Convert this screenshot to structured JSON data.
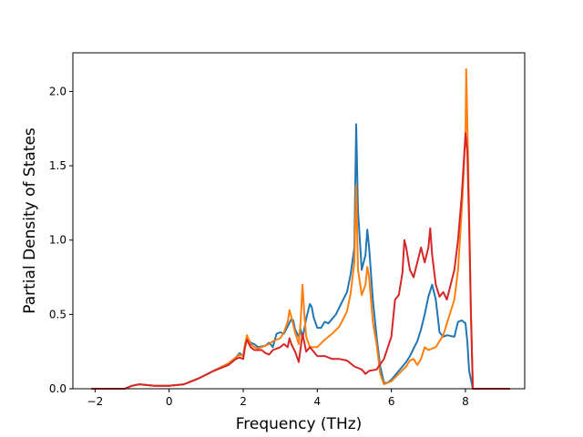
{
  "chart_data": {
    "type": "line",
    "title": "",
    "xlabel": "Frequency (THz)",
    "ylabel": "Partial Density of States",
    "xlim": [
      -2.6,
      9.6
    ],
    "ylim": [
      0.0,
      2.26
    ],
    "xticks": [
      -2,
      0,
      2,
      4,
      6,
      8
    ],
    "yticks": [
      0.0,
      0.5,
      1.0,
      1.5,
      2.0
    ],
    "xtick_labels": [
      "−2",
      "0",
      "2",
      "4",
      "6",
      "8"
    ],
    "ytick_labels": [
      "0.0",
      "0.5",
      "1.0",
      "1.5",
      "2.0"
    ],
    "grid": false,
    "legend": "none",
    "series": [
      {
        "color": "#1f77b4",
        "points": [
          [
            -2.1,
            0
          ],
          [
            -1.2,
            0.0
          ],
          [
            -1.0,
            0.02
          ],
          [
            -0.8,
            0.03
          ],
          [
            -0.4,
            0.02
          ],
          [
            0,
            0.02
          ],
          [
            0.4,
            0.03
          ],
          [
            0.8,
            0.07
          ],
          [
            1.2,
            0.12
          ],
          [
            1.6,
            0.17
          ],
          [
            1.8,
            0.21
          ],
          [
            1.9,
            0.24
          ],
          [
            2.0,
            0.22
          ],
          [
            2.05,
            0.3
          ],
          [
            2.1,
            0.35
          ],
          [
            2.2,
            0.31
          ],
          [
            2.3,
            0.3
          ],
          [
            2.4,
            0.28
          ],
          [
            2.6,
            0.29
          ],
          [
            2.7,
            0.31
          ],
          [
            2.8,
            0.28
          ],
          [
            2.9,
            0.37
          ],
          [
            3.0,
            0.38
          ],
          [
            3.1,
            0.37
          ],
          [
            3.2,
            0.42
          ],
          [
            3.3,
            0.47
          ],
          [
            3.35,
            0.46
          ],
          [
            3.4,
            0.4
          ],
          [
            3.5,
            0.35
          ],
          [
            3.55,
            0.4
          ],
          [
            3.6,
            0.34
          ],
          [
            3.7,
            0.47
          ],
          [
            3.8,
            0.57
          ],
          [
            3.85,
            0.55
          ],
          [
            3.9,
            0.48
          ],
          [
            4.0,
            0.41
          ],
          [
            4.1,
            0.41
          ],
          [
            4.2,
            0.45
          ],
          [
            4.3,
            0.44
          ],
          [
            4.5,
            0.5
          ],
          [
            4.7,
            0.6
          ],
          [
            4.8,
            0.65
          ],
          [
            4.9,
            0.77
          ],
          [
            5.0,
            0.95
          ],
          [
            5.05,
            1.78
          ],
          [
            5.1,
            1.2
          ],
          [
            5.2,
            0.8
          ],
          [
            5.3,
            0.9
          ],
          [
            5.35,
            1.07
          ],
          [
            5.4,
            0.95
          ],
          [
            5.5,
            0.6
          ],
          [
            5.6,
            0.35
          ],
          [
            5.7,
            0.15
          ],
          [
            5.8,
            0.04
          ],
          [
            5.9,
            0.04
          ],
          [
            6.0,
            0.06
          ],
          [
            6.2,
            0.12
          ],
          [
            6.4,
            0.18
          ],
          [
            6.5,
            0.22
          ],
          [
            6.6,
            0.27
          ],
          [
            6.7,
            0.32
          ],
          [
            6.8,
            0.4
          ],
          [
            6.9,
            0.5
          ],
          [
            7.0,
            0.62
          ],
          [
            7.1,
            0.7
          ],
          [
            7.2,
            0.6
          ],
          [
            7.3,
            0.38
          ],
          [
            7.4,
            0.35
          ],
          [
            7.5,
            0.36
          ],
          [
            7.7,
            0.35
          ],
          [
            7.8,
            0.45
          ],
          [
            7.9,
            0.46
          ],
          [
            8.0,
            0.44
          ],
          [
            8.05,
            0.32
          ],
          [
            8.1,
            0.12
          ],
          [
            8.2,
            0.0
          ],
          [
            9.2,
            0.0
          ]
        ]
      },
      {
        "color": "#ff7f0e",
        "points": [
          [
            -2.1,
            0
          ],
          [
            -1.2,
            0.0
          ],
          [
            -1.0,
            0.02
          ],
          [
            -0.8,
            0.03
          ],
          [
            -0.4,
            0.02
          ],
          [
            0,
            0.02
          ],
          [
            0.4,
            0.03
          ],
          [
            0.8,
            0.07
          ],
          [
            1.2,
            0.12
          ],
          [
            1.6,
            0.17
          ],
          [
            1.8,
            0.21
          ],
          [
            1.9,
            0.23
          ],
          [
            2.0,
            0.22
          ],
          [
            2.05,
            0.3
          ],
          [
            2.1,
            0.36
          ],
          [
            2.2,
            0.3
          ],
          [
            2.3,
            0.28
          ],
          [
            2.4,
            0.27
          ],
          [
            2.6,
            0.29
          ],
          [
            2.7,
            0.3
          ],
          [
            2.8,
            0.32
          ],
          [
            3.0,
            0.34
          ],
          [
            3.1,
            0.38
          ],
          [
            3.2,
            0.45
          ],
          [
            3.25,
            0.53
          ],
          [
            3.3,
            0.48
          ],
          [
            3.4,
            0.38
          ],
          [
            3.5,
            0.3
          ],
          [
            3.55,
            0.45
          ],
          [
            3.6,
            0.7
          ],
          [
            3.65,
            0.5
          ],
          [
            3.7,
            0.35
          ],
          [
            3.8,
            0.28
          ],
          [
            4.0,
            0.28
          ],
          [
            4.2,
            0.33
          ],
          [
            4.4,
            0.37
          ],
          [
            4.6,
            0.42
          ],
          [
            4.8,
            0.52
          ],
          [
            4.9,
            0.64
          ],
          [
            5.0,
            0.85
          ],
          [
            5.05,
            1.37
          ],
          [
            5.1,
            0.8
          ],
          [
            5.2,
            0.63
          ],
          [
            5.3,
            0.7
          ],
          [
            5.35,
            0.82
          ],
          [
            5.4,
            0.75
          ],
          [
            5.5,
            0.45
          ],
          [
            5.6,
            0.3
          ],
          [
            5.7,
            0.1
          ],
          [
            5.8,
            0.03
          ],
          [
            6.0,
            0.05
          ],
          [
            6.2,
            0.1
          ],
          [
            6.4,
            0.15
          ],
          [
            6.5,
            0.19
          ],
          [
            6.6,
            0.2
          ],
          [
            6.7,
            0.16
          ],
          [
            6.8,
            0.2
          ],
          [
            6.9,
            0.28
          ],
          [
            7.0,
            0.26
          ],
          [
            7.2,
            0.28
          ],
          [
            7.4,
            0.36
          ],
          [
            7.5,
            0.44
          ],
          [
            7.7,
            0.6
          ],
          [
            7.8,
            0.8
          ],
          [
            7.9,
            1.2
          ],
          [
            8.0,
            1.7
          ],
          [
            8.02,
            2.15
          ],
          [
            8.05,
            1.8
          ],
          [
            8.1,
            1.2
          ],
          [
            8.15,
            0.5
          ],
          [
            8.2,
            0.0
          ],
          [
            9.2,
            0.0
          ]
        ]
      },
      {
        "color": "#d62728",
        "points": [
          [
            -2.1,
            0
          ],
          [
            -1.2,
            0.0
          ],
          [
            -1.0,
            0.02
          ],
          [
            -0.8,
            0.03
          ],
          [
            -0.4,
            0.02
          ],
          [
            0,
            0.02
          ],
          [
            0.4,
            0.03
          ],
          [
            0.8,
            0.07
          ],
          [
            1.2,
            0.12
          ],
          [
            1.6,
            0.16
          ],
          [
            1.8,
            0.2
          ],
          [
            1.9,
            0.21
          ],
          [
            2.0,
            0.2
          ],
          [
            2.05,
            0.28
          ],
          [
            2.1,
            0.33
          ],
          [
            2.2,
            0.28
          ],
          [
            2.3,
            0.26
          ],
          [
            2.5,
            0.26
          ],
          [
            2.6,
            0.24
          ],
          [
            2.7,
            0.23
          ],
          [
            2.8,
            0.26
          ],
          [
            2.9,
            0.27
          ],
          [
            3.0,
            0.28
          ],
          [
            3.1,
            0.3
          ],
          [
            3.2,
            0.28
          ],
          [
            3.25,
            0.34
          ],
          [
            3.3,
            0.3
          ],
          [
            3.4,
            0.25
          ],
          [
            3.5,
            0.18
          ],
          [
            3.6,
            0.37
          ],
          [
            3.7,
            0.25
          ],
          [
            3.8,
            0.28
          ],
          [
            3.9,
            0.25
          ],
          [
            4.0,
            0.22
          ],
          [
            4.2,
            0.22
          ],
          [
            4.4,
            0.2
          ],
          [
            4.6,
            0.2
          ],
          [
            4.8,
            0.19
          ],
          [
            5.0,
            0.15
          ],
          [
            5.2,
            0.13
          ],
          [
            5.3,
            0.1
          ],
          [
            5.4,
            0.12
          ],
          [
            5.6,
            0.13
          ],
          [
            5.8,
            0.2
          ],
          [
            6.0,
            0.35
          ],
          [
            6.1,
            0.6
          ],
          [
            6.2,
            0.63
          ],
          [
            6.3,
            0.78
          ],
          [
            6.35,
            1.0
          ],
          [
            6.4,
            0.95
          ],
          [
            6.5,
            0.8
          ],
          [
            6.6,
            0.75
          ],
          [
            6.7,
            0.85
          ],
          [
            6.8,
            0.95
          ],
          [
            6.9,
            0.85
          ],
          [
            7.0,
            0.95
          ],
          [
            7.05,
            1.08
          ],
          [
            7.1,
            0.9
          ],
          [
            7.2,
            0.7
          ],
          [
            7.3,
            0.62
          ],
          [
            7.4,
            0.65
          ],
          [
            7.5,
            0.6
          ],
          [
            7.6,
            0.7
          ],
          [
            7.7,
            0.8
          ],
          [
            7.8,
            1.0
          ],
          [
            7.9,
            1.3
          ],
          [
            8.0,
            1.72
          ],
          [
            8.05,
            1.6
          ],
          [
            8.1,
            1.1
          ],
          [
            8.15,
            0.5
          ],
          [
            8.2,
            0.0
          ],
          [
            9.2,
            0.0
          ]
        ]
      }
    ]
  }
}
